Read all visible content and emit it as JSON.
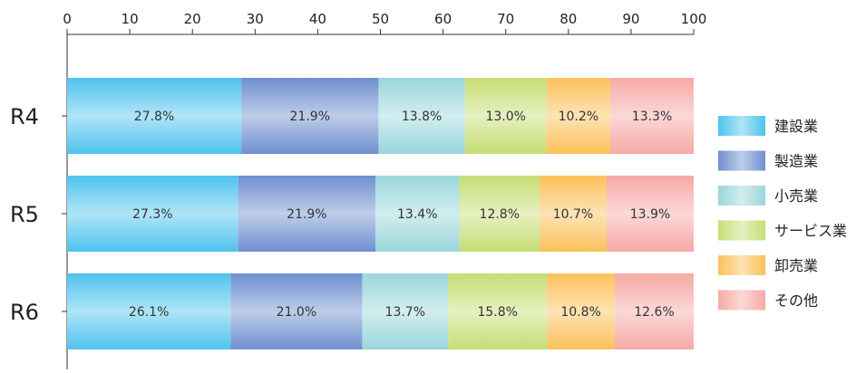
{
  "chart_data": {
    "type": "bar",
    "orientation": "horizontal",
    "stacked": true,
    "xlim": [
      0,
      100
    ],
    "x_ticks": [
      0,
      10,
      20,
      30,
      40,
      50,
      60,
      70,
      80,
      90,
      100
    ],
    "x_axis_position": "top",
    "grid": false,
    "legend_position": "right",
    "categories": [
      "R4",
      "R5",
      "R6"
    ],
    "series": [
      {
        "name": "建設業",
        "color": "#4fc3ee",
        "values": [
          27.8,
          27.3,
          26.1
        ],
        "labels": [
          "27.8%",
          "27.3%",
          "26.1%"
        ]
      },
      {
        "name": "製造業",
        "color": "#6f8fcf",
        "values": [
          21.9,
          21.9,
          21.0
        ],
        "labels": [
          "21.9%",
          "21.9%",
          "21.0%"
        ]
      },
      {
        "name": "小売業",
        "color": "#9ad6dc",
        "values": [
          13.8,
          13.4,
          13.7
        ],
        "labels": [
          "13.8%",
          "13.4%",
          "13.7%"
        ]
      },
      {
        "name": "サービス業",
        "color": "#c6dd74",
        "values": [
          13.0,
          12.8,
          15.8
        ],
        "labels": [
          "13.0%",
          "12.8%",
          "15.8%"
        ]
      },
      {
        "name": "卸売業",
        "color": "#fbc15a",
        "values": [
          10.2,
          10.7,
          10.8
        ],
        "labels": [
          "10.2%",
          "10.7%",
          "10.8%"
        ]
      },
      {
        "name": "その他",
        "color": "#f6a9a5",
        "values": [
          13.3,
          13.9,
          12.6
        ],
        "labels": [
          "13.3%",
          "13.9%",
          "12.6%"
        ]
      }
    ]
  }
}
